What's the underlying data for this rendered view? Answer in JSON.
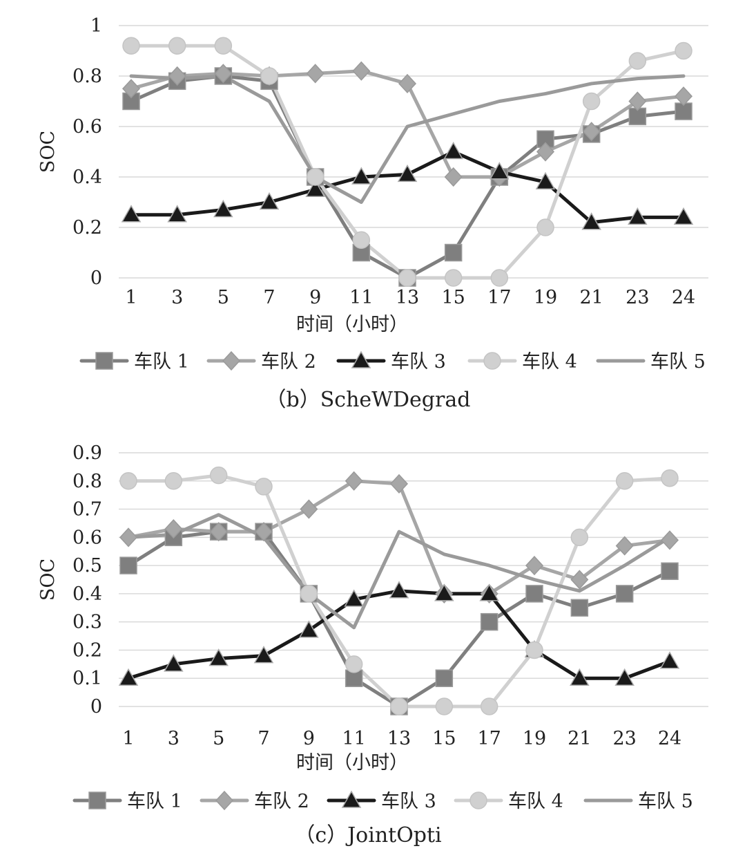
{
  "chart_data": [
    {
      "type": "line",
      "caption": "（b）ScheWDegrad",
      "xlabel": "时间（小时）",
      "ylabel": "SOC",
      "categories": [
        "1",
        "3",
        "5",
        "7",
        "9",
        "11",
        "13",
        "15",
        "17",
        "19",
        "21",
        "23",
        "24"
      ],
      "ylim": [
        0,
        1
      ],
      "yticks": [
        "0",
        "0.2",
        "0.4",
        "0.6",
        "0.8",
        "1"
      ],
      "ytick_values": [
        0,
        0.2,
        0.4,
        0.6,
        0.8,
        1
      ],
      "grid": true,
      "legend_position": "bottom",
      "series": [
        {
          "name": "车队 1",
          "marker": "square",
          "color": "#7f7f7f",
          "values": [
            0.7,
            0.78,
            0.8,
            0.78,
            0.4,
            0.1,
            0.0,
            0.1,
            0.4,
            0.55,
            0.57,
            0.64,
            0.66
          ]
        },
        {
          "name": "车队 2",
          "marker": "diamond",
          "color": "#a6a6a6",
          "values": [
            0.75,
            0.8,
            0.81,
            0.8,
            0.81,
            0.82,
            0.77,
            0.4,
            0.4,
            0.5,
            0.58,
            0.7,
            0.72
          ]
        },
        {
          "name": "车队 3",
          "marker": "triangle",
          "color": "#1a1a1a",
          "values": [
            0.25,
            0.25,
            0.27,
            0.3,
            0.35,
            0.4,
            0.41,
            0.5,
            0.42,
            0.38,
            0.22,
            0.24,
            0.24
          ]
        },
        {
          "name": "车队 4",
          "marker": "circle",
          "color": "#d0d0d0",
          "values": [
            0.92,
            0.92,
            0.92,
            0.8,
            0.4,
            0.15,
            0.0,
            0.0,
            0.0,
            0.2,
            0.7,
            0.86,
            0.9
          ]
        },
        {
          "name": "车队 5",
          "marker": "none",
          "color": "#9a9a9a",
          "values": [
            0.8,
            0.79,
            0.8,
            0.7,
            0.4,
            0.3,
            0.6,
            0.65,
            0.7,
            0.73,
            0.77,
            0.79,
            0.8
          ]
        }
      ]
    },
    {
      "type": "line",
      "caption": "（c）JointOpti",
      "xlabel": "时间（小时）",
      "ylabel": "SOC",
      "categories": [
        "1",
        "3",
        "5",
        "7",
        "9",
        "11",
        "13",
        "15",
        "17",
        "19",
        "21",
        "23",
        "24"
      ],
      "ylim": [
        0,
        0.9
      ],
      "yticks": [
        "0",
        "0.1",
        "0.2",
        "0.3",
        "0.4",
        "0.5",
        "0.6",
        "0.7",
        "0.8",
        "0.9"
      ],
      "ytick_values": [
        0,
        0.1,
        0.2,
        0.3,
        0.4,
        0.5,
        0.6,
        0.7,
        0.8,
        0.9
      ],
      "grid": true,
      "legend_position": "bottom",
      "series": [
        {
          "name": "车队 1",
          "marker": "square",
          "color": "#7f7f7f",
          "values": [
            0.5,
            0.6,
            0.62,
            0.62,
            0.4,
            0.1,
            0.0,
            0.1,
            0.3,
            0.4,
            0.35,
            0.4,
            0.48
          ]
        },
        {
          "name": "车队 2",
          "marker": "diamond",
          "color": "#a6a6a6",
          "values": [
            0.6,
            0.63,
            0.62,
            0.62,
            0.7,
            0.8,
            0.79,
            0.4,
            0.4,
            0.5,
            0.45,
            0.57,
            0.59
          ]
        },
        {
          "name": "车队 3",
          "marker": "triangle",
          "color": "#1a1a1a",
          "values": [
            0.1,
            0.15,
            0.17,
            0.18,
            0.27,
            0.38,
            0.41,
            0.4,
            0.4,
            0.2,
            0.1,
            0.1,
            0.16
          ]
        },
        {
          "name": "车队 4",
          "marker": "circle",
          "color": "#d0d0d0",
          "values": [
            0.8,
            0.8,
            0.82,
            0.78,
            0.4,
            0.15,
            0.0,
            0.0,
            0.0,
            0.2,
            0.6,
            0.8,
            0.81
          ]
        },
        {
          "name": "车队 5",
          "marker": "none",
          "color": "#9a9a9a",
          "values": [
            0.6,
            0.61,
            0.68,
            0.6,
            0.4,
            0.28,
            0.62,
            0.54,
            0.5,
            0.45,
            0.41,
            0.5,
            0.6
          ]
        }
      ]
    }
  ]
}
